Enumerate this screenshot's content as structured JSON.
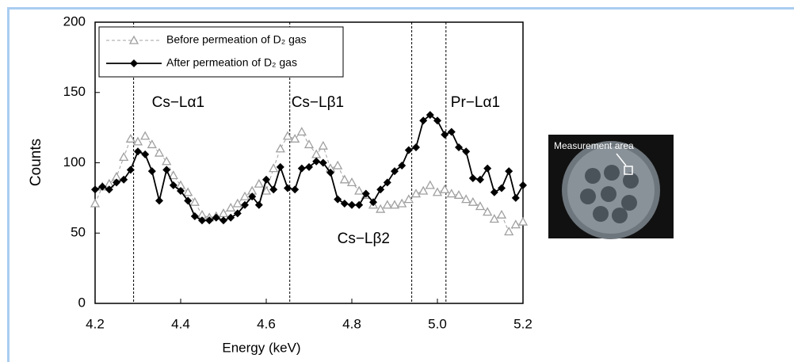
{
  "chart_data": {
    "type": "line",
    "x_label": "Energy (keV)",
    "y_label": "Counts",
    "x": [
      4.2,
      4.217,
      4.233,
      4.25,
      4.267,
      4.283,
      4.3,
      4.317,
      4.333,
      4.35,
      4.367,
      4.383,
      4.4,
      4.417,
      4.433,
      4.45,
      4.467,
      4.483,
      4.5,
      4.517,
      4.533,
      4.55,
      4.567,
      4.583,
      4.6,
      4.617,
      4.633,
      4.65,
      4.667,
      4.683,
      4.7,
      4.717,
      4.733,
      4.75,
      4.767,
      4.783,
      4.8,
      4.817,
      4.833,
      4.85,
      4.867,
      4.883,
      4.9,
      4.917,
      4.933,
      4.95,
      4.967,
      4.983,
      5.0,
      5.017,
      5.033,
      5.05,
      5.067,
      5.083,
      5.1,
      5.117,
      5.133,
      5.15,
      5.167,
      5.183,
      5.2
    ],
    "series": [
      {
        "name": "Before permeation of D₂ gas",
        "color": "#a0a0a0",
        "marker": "triangle",
        "dashed": true,
        "values": [
          71,
          83,
          85,
          90,
          104,
          117,
          115,
          119,
          113,
          107,
          101,
          91,
          84,
          79,
          72,
          63,
          61,
          62,
          64,
          68,
          71,
          76,
          80,
          85,
          80,
          96,
          110,
          119,
          117,
          122,
          113,
          106,
          112,
          96,
          98,
          88,
          86,
          80,
          77,
          70,
          67,
          70,
          70,
          71,
          74,
          78,
          80,
          84,
          79,
          81,
          78,
          77,
          74,
          72,
          69,
          65,
          60,
          63,
          51,
          56,
          58
        ]
      },
      {
        "name": "After permeation of D₂ gas",
        "color": "#000000",
        "marker": "diamond",
        "dashed": false,
        "values": [
          81,
          83,
          81,
          86,
          88,
          95,
          108,
          106,
          94,
          73,
          95,
          84,
          80,
          73,
          62,
          59,
          59,
          61,
          59,
          61,
          64,
          70,
          76,
          70,
          88,
          81,
          97,
          82,
          81,
          96,
          97,
          101,
          100,
          93,
          74,
          71,
          70,
          70,
          78,
          72,
          81,
          86,
          94,
          98,
          109,
          111,
          130,
          134,
          130,
          120,
          122,
          111,
          108,
          89,
          88,
          96,
          79,
          82,
          94,
          75,
          84
        ]
      }
    ],
    "reference_lines": [
      {
        "x": 4.29,
        "label": "Cs−Lα1"
      },
      {
        "x": 4.655,
        "label": "Cs−Lβ1"
      },
      {
        "x": 4.94,
        "label": "Cs−Lβ2"
      },
      {
        "x": 5.02,
        "label": "Pr−Lα1"
      }
    ],
    "xlim": [
      4.2,
      5.2
    ],
    "xticks": [
      4.2,
      4.4,
      4.6,
      4.8,
      {
        "value": 5,
        "label": "5.0"
      },
      5.2
    ],
    "ylim": [
      0,
      200
    ],
    "yticks": [
      0,
      50,
      100,
      150,
      200
    ],
    "legend": "upper left",
    "grid": false
  },
  "inset": {
    "label": "Measurement area"
  }
}
